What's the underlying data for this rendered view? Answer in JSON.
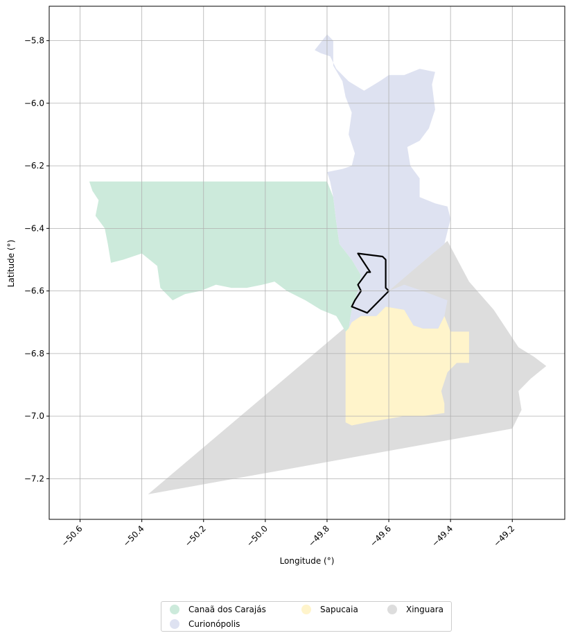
{
  "chart_data": {
    "type": "map",
    "xlabel": "Longitude (°)",
    "ylabel": "Latitude (°)",
    "xlim": [
      -50.7,
      -49.03
    ],
    "ylim": [
      -7.33,
      -5.69
    ],
    "x_ticks": [
      -50.6,
      -50.4,
      -50.2,
      -50.0,
      -49.8,
      -49.6,
      -49.4,
      -49.2
    ],
    "x_tick_labels": [
      "−50.6",
      "−50.4",
      "−50.2",
      "−50.0",
      "−49.8",
      "−49.6",
      "−49.4",
      "−49.2"
    ],
    "y_ticks": [
      -5.8,
      -6.0,
      -6.2,
      -6.4,
      -6.6,
      -6.8,
      -7.0,
      -7.2
    ],
    "y_tick_labels": [
      "−5.8",
      "−6.0",
      "−6.2",
      "−6.4",
      "−6.6",
      "−6.8",
      "−7.0",
      "−7.2"
    ],
    "grid": true,
    "legend_position": "bottom-center",
    "regions": [
      {
        "name": "Xinguara",
        "color": "#dddddd",
        "polygon": [
          [
            -50.38,
            -7.25
          ],
          [
            -49.41,
            -6.44
          ],
          [
            -49.34,
            -6.57
          ],
          [
            -49.26,
            -6.66
          ],
          [
            -49.18,
            -6.78
          ],
          [
            -49.13,
            -6.81
          ],
          [
            -49.09,
            -6.84
          ],
          [
            -49.14,
            -6.88
          ],
          [
            -49.18,
            -6.92
          ],
          [
            -49.17,
            -6.98
          ],
          [
            -49.2,
            -7.04
          ]
        ]
      },
      {
        "name": "Sapucaia",
        "color": "#fff4cb",
        "polygon": [
          [
            -49.74,
            -6.73
          ],
          [
            -49.72,
            -6.7
          ],
          [
            -49.69,
            -6.68
          ],
          [
            -49.64,
            -6.68
          ],
          [
            -49.61,
            -6.65
          ],
          [
            -49.55,
            -6.66
          ],
          [
            -49.52,
            -6.71
          ],
          [
            -49.49,
            -6.72
          ],
          [
            -49.44,
            -6.72
          ],
          [
            -49.42,
            -6.68
          ],
          [
            -49.4,
            -6.73
          ],
          [
            -49.34,
            -6.73
          ],
          [
            -49.34,
            -6.83
          ],
          [
            -49.38,
            -6.83
          ],
          [
            -49.41,
            -6.86
          ],
          [
            -49.43,
            -6.92
          ],
          [
            -49.42,
            -6.96
          ],
          [
            -49.42,
            -6.99
          ],
          [
            -49.49,
            -7.0
          ],
          [
            -49.55,
            -7.0
          ],
          [
            -49.61,
            -7.01
          ],
          [
            -49.67,
            -7.02
          ],
          [
            -49.72,
            -7.03
          ],
          [
            -49.74,
            -7.02
          ]
        ]
      },
      {
        "name": "Canaã dos Carajás",
        "color": "#cceadb",
        "polygon": [
          [
            -50.57,
            -6.25
          ],
          [
            -49.8,
            -6.25
          ],
          [
            -49.78,
            -6.3
          ],
          [
            -49.77,
            -6.38
          ],
          [
            -49.76,
            -6.45
          ],
          [
            -49.72,
            -6.5
          ],
          [
            -49.69,
            -6.55
          ],
          [
            -49.7,
            -6.6
          ],
          [
            -49.72,
            -6.66
          ],
          [
            -49.73,
            -6.72
          ],
          [
            -49.74,
            -6.73
          ],
          [
            -49.77,
            -6.68
          ],
          [
            -49.82,
            -6.66
          ],
          [
            -49.87,
            -6.63
          ],
          [
            -49.93,
            -6.6
          ],
          [
            -49.97,
            -6.57
          ],
          [
            -50.01,
            -6.58
          ],
          [
            -50.06,
            -6.59
          ],
          [
            -50.11,
            -6.59
          ],
          [
            -50.16,
            -6.58
          ],
          [
            -50.21,
            -6.6
          ],
          [
            -50.26,
            -6.61
          ],
          [
            -50.3,
            -6.63
          ],
          [
            -50.34,
            -6.59
          ],
          [
            -50.35,
            -6.52
          ],
          [
            -50.4,
            -6.48
          ],
          [
            -50.46,
            -6.5
          ],
          [
            -50.5,
            -6.51
          ],
          [
            -50.51,
            -6.45
          ],
          [
            -50.52,
            -6.4
          ],
          [
            -50.55,
            -6.36
          ],
          [
            -50.54,
            -6.31
          ],
          [
            -50.56,
            -6.28
          ]
        ]
      },
      {
        "name": "Curionópolis",
        "color": "#dee2f1",
        "polygon": [
          [
            -49.84,
            -5.83
          ],
          [
            -49.8,
            -5.78
          ],
          [
            -49.78,
            -5.8
          ],
          [
            -49.78,
            -5.88
          ],
          [
            -49.75,
            -5.93
          ],
          [
            -49.74,
            -5.98
          ],
          [
            -49.72,
            -6.03
          ],
          [
            -49.73,
            -6.1
          ],
          [
            -49.71,
            -6.16
          ],
          [
            -49.72,
            -6.2
          ],
          [
            -49.75,
            -6.21
          ],
          [
            -49.8,
            -6.22
          ],
          [
            -49.79,
            -6.25
          ],
          [
            -49.78,
            -6.3
          ],
          [
            -49.77,
            -6.38
          ],
          [
            -49.76,
            -6.45
          ],
          [
            -49.72,
            -6.5
          ],
          [
            -49.69,
            -6.55
          ],
          [
            -49.7,
            -6.6
          ],
          [
            -49.72,
            -6.66
          ],
          [
            -49.73,
            -6.72
          ],
          [
            -49.72,
            -6.7
          ],
          [
            -49.69,
            -6.68
          ],
          [
            -49.64,
            -6.68
          ],
          [
            -49.61,
            -6.65
          ],
          [
            -49.55,
            -6.66
          ],
          [
            -49.52,
            -6.71
          ],
          [
            -49.49,
            -6.72
          ],
          [
            -49.44,
            -6.72
          ],
          [
            -49.42,
            -6.68
          ],
          [
            -49.41,
            -6.63
          ],
          [
            -49.49,
            -6.6
          ],
          [
            -49.55,
            -6.58
          ],
          [
            -49.6,
            -6.6
          ],
          [
            -49.47,
            -6.49
          ],
          [
            -49.42,
            -6.45
          ],
          [
            -49.4,
            -6.37
          ],
          [
            -49.41,
            -6.33
          ],
          [
            -49.45,
            -6.32
          ],
          [
            -49.5,
            -6.3
          ],
          [
            -49.5,
            -6.24
          ],
          [
            -49.53,
            -6.2
          ],
          [
            -49.54,
            -6.14
          ],
          [
            -49.5,
            -6.12
          ],
          [
            -49.47,
            -6.08
          ],
          [
            -49.45,
            -6.02
          ],
          [
            -49.46,
            -5.94
          ],
          [
            -49.45,
            -5.9
          ],
          [
            -49.5,
            -5.89
          ],
          [
            -49.55,
            -5.91
          ],
          [
            -49.6,
            -5.91
          ],
          [
            -49.63,
            -5.93
          ],
          [
            -49.68,
            -5.96
          ],
          [
            -49.73,
            -5.93
          ],
          [
            -49.77,
            -5.89
          ],
          [
            -49.79,
            -5.85
          ],
          [
            -49.82,
            -5.84
          ]
        ]
      }
    ],
    "highlight_outline": {
      "color": "#000000",
      "polygon": [
        [
          -49.7,
          -6.48
        ],
        [
          -49.62,
          -6.49
        ],
        [
          -49.61,
          -6.5
        ],
        [
          -49.61,
          -6.56
        ],
        [
          -49.61,
          -6.59
        ],
        [
          -49.6,
          -6.6
        ],
        [
          -49.67,
          -6.67
        ],
        [
          -49.72,
          -6.65
        ],
        [
          -49.71,
          -6.63
        ],
        [
          -49.69,
          -6.6
        ],
        [
          -49.7,
          -6.58
        ],
        [
          -49.67,
          -6.54
        ],
        [
          -49.66,
          -6.54
        ],
        [
          -49.68,
          -6.51
        ]
      ]
    },
    "legend": [
      {
        "label": "Canaã dos Carajás",
        "color": "#cceadb"
      },
      {
        "label": "Curionópolis",
        "color": "#dee2f1"
      },
      {
        "label": "Sapucaia",
        "color": "#fff4cb"
      },
      {
        "label": "Xinguara",
        "color": "#dddddd"
      }
    ]
  }
}
